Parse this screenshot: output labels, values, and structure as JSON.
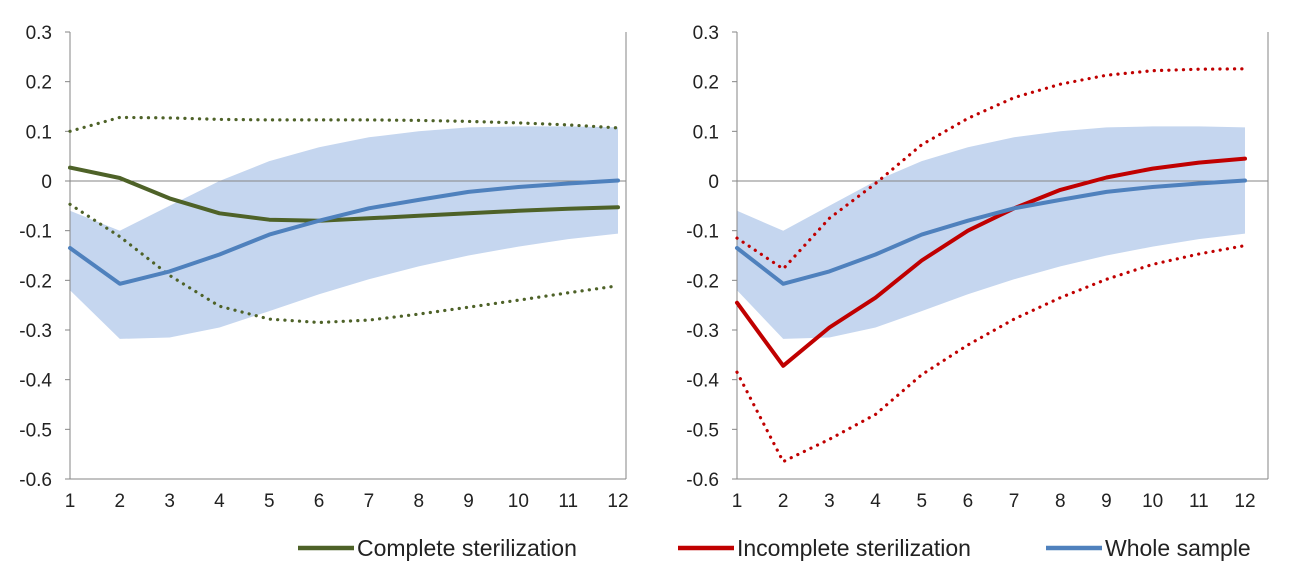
{
  "chart_data": [
    {
      "type": "line",
      "panel": "left",
      "x": [
        1,
        2,
        3,
        4,
        5,
        6,
        7,
        8,
        9,
        10,
        11,
        12
      ],
      "xlim": [
        1,
        12
      ],
      "ylim": [
        -0.6,
        0.3
      ],
      "yticks": [
        0.3,
        0.2,
        0.1,
        0,
        -0.1,
        -0.2,
        -0.3,
        -0.4,
        -0.5,
        -0.6
      ],
      "ytick_labels": [
        "0.3",
        "0.2",
        "0.1",
        "0",
        "-0.1",
        "-0.2",
        "-0.3",
        "-0.4",
        "-0.5",
        "-0.6"
      ],
      "xtick_labels": [
        "1",
        "2",
        "3",
        "4",
        "5",
        "6",
        "7",
        "8",
        "9",
        "10",
        "11",
        "12"
      ],
      "band": {
        "upper": [
          -0.06,
          -0.1,
          -0.05,
          0.0,
          0.04,
          0.068,
          0.088,
          0.1,
          0.108,
          0.11,
          0.11,
          0.108
        ],
        "lower": [
          -0.22,
          -0.318,
          -0.315,
          -0.295,
          -0.262,
          -0.228,
          -0.198,
          -0.172,
          -0.15,
          -0.132,
          -0.117,
          -0.106
        ],
        "color": "#c5d6ef"
      },
      "series": [
        {
          "legend_ref": "complete",
          "color": "#4e6228",
          "style": "solid",
          "values": [
            0.027,
            0.006,
            -0.035,
            -0.065,
            -0.078,
            -0.08,
            -0.075,
            -0.07,
            -0.065,
            -0.06,
            -0.056,
            -0.053
          ]
        },
        {
          "legend_ref": "complete",
          "color": "#4e6228",
          "style": "dotted",
          "values": [
            0.1,
            0.128,
            0.127,
            0.124,
            0.123,
            0.123,
            0.123,
            0.122,
            0.12,
            0.117,
            0.113,
            0.107
          ]
        },
        {
          "legend_ref": "complete",
          "color": "#4e6228",
          "style": "dotted",
          "values": [
            -0.047,
            -0.112,
            -0.19,
            -0.252,
            -0.278,
            -0.285,
            -0.28,
            -0.268,
            -0.254,
            -0.24,
            -0.225,
            -0.211
          ]
        },
        {
          "legend_ref": "whole",
          "color": "#4f81bd",
          "style": "solid",
          "values": [
            -0.135,
            -0.207,
            -0.182,
            -0.148,
            -0.108,
            -0.08,
            -0.055,
            -0.038,
            -0.022,
            -0.012,
            -0.005,
            0.001
          ]
        }
      ]
    },
    {
      "type": "line",
      "panel": "right",
      "x": [
        1,
        2,
        3,
        4,
        5,
        6,
        7,
        8,
        9,
        10,
        11,
        12
      ],
      "xlim": [
        1,
        12
      ],
      "ylim": [
        -0.6,
        0.3
      ],
      "yticks": [
        0.3,
        0.2,
        0.1,
        0,
        -0.1,
        -0.2,
        -0.3,
        -0.4,
        -0.5,
        -0.6
      ],
      "ytick_labels": [
        "0.3",
        "0.2",
        "0.1",
        "0",
        "-0.1",
        "-0.2",
        "-0.3",
        "-0.4",
        "-0.5",
        "-0.6"
      ],
      "xtick_labels": [
        "1",
        "2",
        "3",
        "4",
        "5",
        "6",
        "7",
        "8",
        "9",
        "10",
        "11",
        "12"
      ],
      "band": {
        "upper": [
          -0.06,
          -0.1,
          -0.05,
          0.0,
          0.04,
          0.068,
          0.088,
          0.1,
          0.108,
          0.11,
          0.11,
          0.108
        ],
        "lower": [
          -0.22,
          -0.318,
          -0.315,
          -0.295,
          -0.262,
          -0.228,
          -0.198,
          -0.172,
          -0.15,
          -0.132,
          -0.117,
          -0.106
        ],
        "color": "#c5d6ef"
      },
      "series": [
        {
          "legend_ref": "incomplete",
          "color": "#c00000",
          "style": "solid",
          "values": [
            -0.245,
            -0.372,
            -0.295,
            -0.235,
            -0.16,
            -0.1,
            -0.055,
            -0.018,
            0.007,
            0.025,
            0.037,
            0.045
          ]
        },
        {
          "legend_ref": "incomplete",
          "color": "#c00000",
          "style": "dotted",
          "values": [
            -0.115,
            -0.177,
            -0.075,
            -0.005,
            0.073,
            0.126,
            0.168,
            0.195,
            0.213,
            0.222,
            0.225,
            0.226
          ]
        },
        {
          "legend_ref": "incomplete",
          "color": "#c00000",
          "style": "dotted",
          "values": [
            -0.385,
            -0.565,
            -0.52,
            -0.47,
            -0.39,
            -0.33,
            -0.278,
            -0.235,
            -0.198,
            -0.168,
            -0.147,
            -0.13
          ]
        },
        {
          "legend_ref": "whole",
          "color": "#4f81bd",
          "style": "solid",
          "values": [
            -0.135,
            -0.207,
            -0.182,
            -0.148,
            -0.108,
            -0.08,
            -0.055,
            -0.038,
            -0.022,
            -0.012,
            -0.005,
            0.001
          ]
        }
      ]
    }
  ],
  "legend": {
    "placement": "bottom-right",
    "items": [
      {
        "key": "complete",
        "label": "Complete sterilization",
        "color": "#4e6228"
      },
      {
        "key": "incomplete",
        "label": "Incomplete sterilization",
        "color": "#c00000"
      },
      {
        "key": "whole",
        "label": "Whole sample",
        "color": "#4f81bd"
      }
    ]
  }
}
